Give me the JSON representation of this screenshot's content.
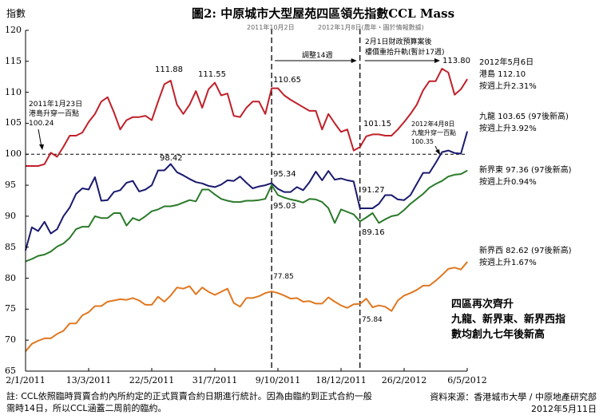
{
  "header": {
    "y_unit_label": "指數",
    "title": "圖2: 中原城市大型屋苑四區領先指數CCL Mass"
  },
  "annotations": {
    "v1_date": "2011年10月2日",
    "v2_date": "2012年1月8日(農年・圖於情報數據)",
    "adjust_label": "調整14週",
    "rise_line1": "2月1日財政預算案後",
    "rise_line2": "樓價重拾升軌(暫計17週)",
    "hk_100_line1": "2011年1月23日",
    "hk_100_line2": "港島升穿一百點",
    "hk_100_line3": "100.24",
    "kln_100_line1": "2012年4月8日",
    "kln_100_line2": "九龍升穿一百點",
    "kln_100_line3": "100.35",
    "summary_line1": "四區再次齊升",
    "summary_line2": "九龍、新界東、新界西指",
    "summary_line3": "數均創九七年後新高"
  },
  "point_labels": {
    "hk_peak1": "111.88",
    "hk_peak2": "111.55",
    "hk_oct": "110.65",
    "hk_jan": "101.15",
    "hk_max": "113.80",
    "kln_peak": "98.42",
    "kln_oct": "95.34",
    "kln_jan": "91.27",
    "nte_oct": "95.03",
    "nte_jan": "89.16",
    "ntw_oct": "77.85",
    "ntw_jan": "75.84"
  },
  "series_labels": {
    "hk_date": "2012年5月6日",
    "hk_value": "港島 112.10",
    "hk_change": "按週上升2.31%",
    "kln_value": "九龍 103.65 (97後新高)",
    "kln_change": "按週上升3.92%",
    "nte_value": "新界東 97.36 (97後新高)",
    "nte_change": "按週上升0.94%",
    "ntw_value": "新界西 82.62 (97後新高)",
    "ntw_change": "按週上升1.67%"
  },
  "footer": {
    "note_line1": "註: CCL依照臨時買賣合約內所約定的正式買賣合約日期進行統計。因為由臨約到正式合約一般",
    "note_line2": "需時14日，所以CCL涵蓋二周前的臨約。",
    "source": "資料來源：香港城市大學 / 中原地產研究部",
    "date": "2012年5月11日"
  },
  "chart_data": {
    "type": "line",
    "title": "圖2: 中原城市大型屋苑四區領先指數CCL Mass",
    "ylabel": "指數",
    "xlabel": "",
    "ylim": [
      65,
      120
    ],
    "yticks": [
      "65",
      "70",
      "75",
      "80",
      "85",
      "90",
      "95",
      "100",
      "105",
      "110",
      "115",
      "120"
    ],
    "xticks": [
      "2/1/2011",
      "13/3/2011",
      "22/5/2011",
      "31/7/2011",
      "9/10/2011",
      "18/12/2011",
      "26/2/2012",
      "6/5/2012"
    ],
    "x_weeks": 71,
    "reference_line": 100,
    "vertical_markers_week": [
      39,
      53
    ],
    "series": [
      {
        "name": "港島",
        "color": "#c0202a",
        "values": [
          98.1,
          98.1,
          98.1,
          98.4,
          100.24,
          99.6,
          101.2,
          103.0,
          103.0,
          103.5,
          105.2,
          106.5,
          108.5,
          109.2,
          106.8,
          104.0,
          105.5,
          106.0,
          106.0,
          106.2,
          105.5,
          108.5,
          111.3,
          111.88,
          108.0,
          106.5,
          108.0,
          110.2,
          107.5,
          110.5,
          111.55,
          109.5,
          109.8,
          106.2,
          106.0,
          107.5,
          108.5,
          108.5,
          106.5,
          110.65,
          110.65,
          109.5,
          108.8,
          108.2,
          107.6,
          107.0,
          107.0,
          104.0,
          106.5,
          105.0,
          103.6,
          104.0,
          100.6,
          101.15,
          102.9,
          103.2,
          103.2,
          103.0,
          103.0,
          104.0,
          105.2,
          106.5,
          108.0,
          110.3,
          111.8,
          111.8,
          113.8,
          113.2,
          109.6,
          110.5,
          112.1
        ]
      },
      {
        "name": "九龍",
        "color": "#1a1a6e",
        "values": [
          84.5,
          88.2,
          87.6,
          89.1,
          87.2,
          87.9,
          90.0,
          91.4,
          93.6,
          94.5,
          94.3,
          96.3,
          92.5,
          92.6,
          93.9,
          94.2,
          95.4,
          95.7,
          94.0,
          94.3,
          95.0,
          97.4,
          97.4,
          98.42,
          97.1,
          96.6,
          96.0,
          95.5,
          95.3,
          94.9,
          94.7,
          95.1,
          95.8,
          95.7,
          96.4,
          95.4,
          94.5,
          94.8,
          95.0,
          95.34,
          94.4,
          93.9,
          93.9,
          94.7,
          94.2,
          95.5,
          97.2,
          95.8,
          97.3,
          95.9,
          96.1,
          95.8,
          95.6,
          91.27,
          91.27,
          91.27,
          92.0,
          93.4,
          93.4,
          92.7,
          92.6,
          93.4,
          95.2,
          97.0,
          97.0,
          98.6,
          100.35,
          100.6,
          100.2,
          100.1,
          103.65
        ]
      },
      {
        "name": "新界東",
        "color": "#2a7a2a",
        "values": [
          82.7,
          83.1,
          83.6,
          83.8,
          84.3,
          85.1,
          85.6,
          86.5,
          87.9,
          88.3,
          88.3,
          90.0,
          89.7,
          89.7,
          90.5,
          90.5,
          88.5,
          89.7,
          89.3,
          90.0,
          90.8,
          91.1,
          91.6,
          91.6,
          91.8,
          92.2,
          92.6,
          92.4,
          94.3,
          94.3,
          93.5,
          92.8,
          92.5,
          92.3,
          92.3,
          92.5,
          92.5,
          92.6,
          92.8,
          95.03,
          93.4,
          93.0,
          92.7,
          92.5,
          92.2,
          92.8,
          92.7,
          92.3,
          91.3,
          88.9,
          91.1,
          90.7,
          90.3,
          89.16,
          89.8,
          90.5,
          88.9,
          89.5,
          90.0,
          90.2,
          91.0,
          92.0,
          92.8,
          93.6,
          94.6,
          95.2,
          95.7,
          96.4,
          96.7,
          96.8,
          97.36
        ]
      },
      {
        "name": "新界西",
        "color": "#e07820",
        "values": [
          68.2,
          69.4,
          69.9,
          70.3,
          70.3,
          71.0,
          71.5,
          72.7,
          72.7,
          74.0,
          74.5,
          75.5,
          75.5,
          76.2,
          76.4,
          76.6,
          76.5,
          76.8,
          76.4,
          75.7,
          75.7,
          77.0,
          76.2,
          77.2,
          78.5,
          78.3,
          78.7,
          77.4,
          78.5,
          77.8,
          77.3,
          77.8,
          78.3,
          76.0,
          75.4,
          76.8,
          76.8,
          77.1,
          77.6,
          77.85,
          77.6,
          77.2,
          76.7,
          76.8,
          76.2,
          76.3,
          75.9,
          75.9,
          76.9,
          76.2,
          75.6,
          75.2,
          75.8,
          75.84,
          76.7,
          75.3,
          75.6,
          75.4,
          74.7,
          76.4,
          77.2,
          77.6,
          78.1,
          78.8,
          78.8,
          79.6,
          80.5,
          81.5,
          81.7,
          81.4,
          82.62
        ]
      }
    ]
  }
}
